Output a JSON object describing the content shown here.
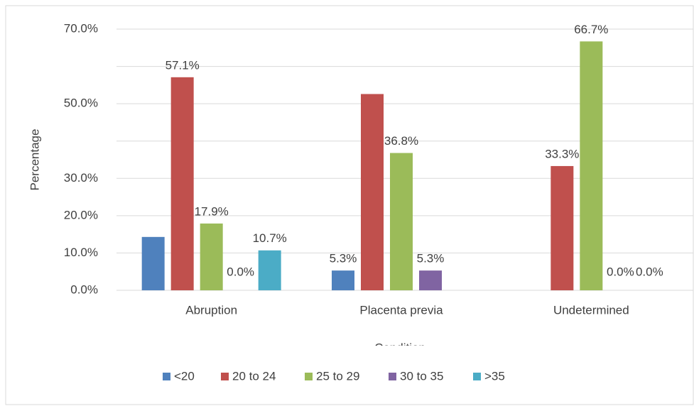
{
  "chart_data": {
    "type": "bar",
    "x_label": "Condition",
    "y_label": "Percentage",
    "categories": [
      "Abruption",
      "Placenta  previa",
      "Undetermined"
    ],
    "series": [
      {
        "name": "<20",
        "color": "#4f81bd",
        "values": [
          14.3,
          5.3,
          null
        ],
        "value_labels": [
          null,
          "5.3%",
          null
        ]
      },
      {
        "name": "20 to 24",
        "color": "#c0504d",
        "values": [
          57.1,
          52.6,
          33.3
        ],
        "value_labels": [
          "57.1%",
          null,
          "33.3%"
        ]
      },
      {
        "name": "25 to 29",
        "color": "#9bbb59",
        "values": [
          17.9,
          36.8,
          66.7
        ],
        "value_labels": [
          "17.9%",
          "36.8%",
          "66.7%"
        ]
      },
      {
        "name": "30 to 35",
        "color": "#8064a2",
        "values": [
          0.0,
          5.3,
          0.0
        ],
        "value_labels": [
          "0.0%",
          "5.3%",
          "0.0%"
        ]
      },
      {
        "name": ">35",
        "color": "#4bacc6",
        "values": [
          10.7,
          null,
          0.0
        ],
        "value_labels": [
          "10.7%",
          null,
          "0.0%"
        ]
      }
    ],
    "ylim": [
      0,
      70
    ],
    "yticks": [
      {
        "value": 0,
        "label": "0.0%"
      },
      {
        "value": 10,
        "label": "10.0%"
      },
      {
        "value": 20,
        "label": "20.0%"
      },
      {
        "value": 30,
        "label": "30.0%"
      },
      {
        "value": 50,
        "label": "50.0%"
      },
      {
        "value": 70,
        "label": "70.0%"
      }
    ],
    "ygrid": [
      0,
      10,
      20,
      30,
      40,
      50,
      60,
      70
    ],
    "legend": "bottom"
  }
}
